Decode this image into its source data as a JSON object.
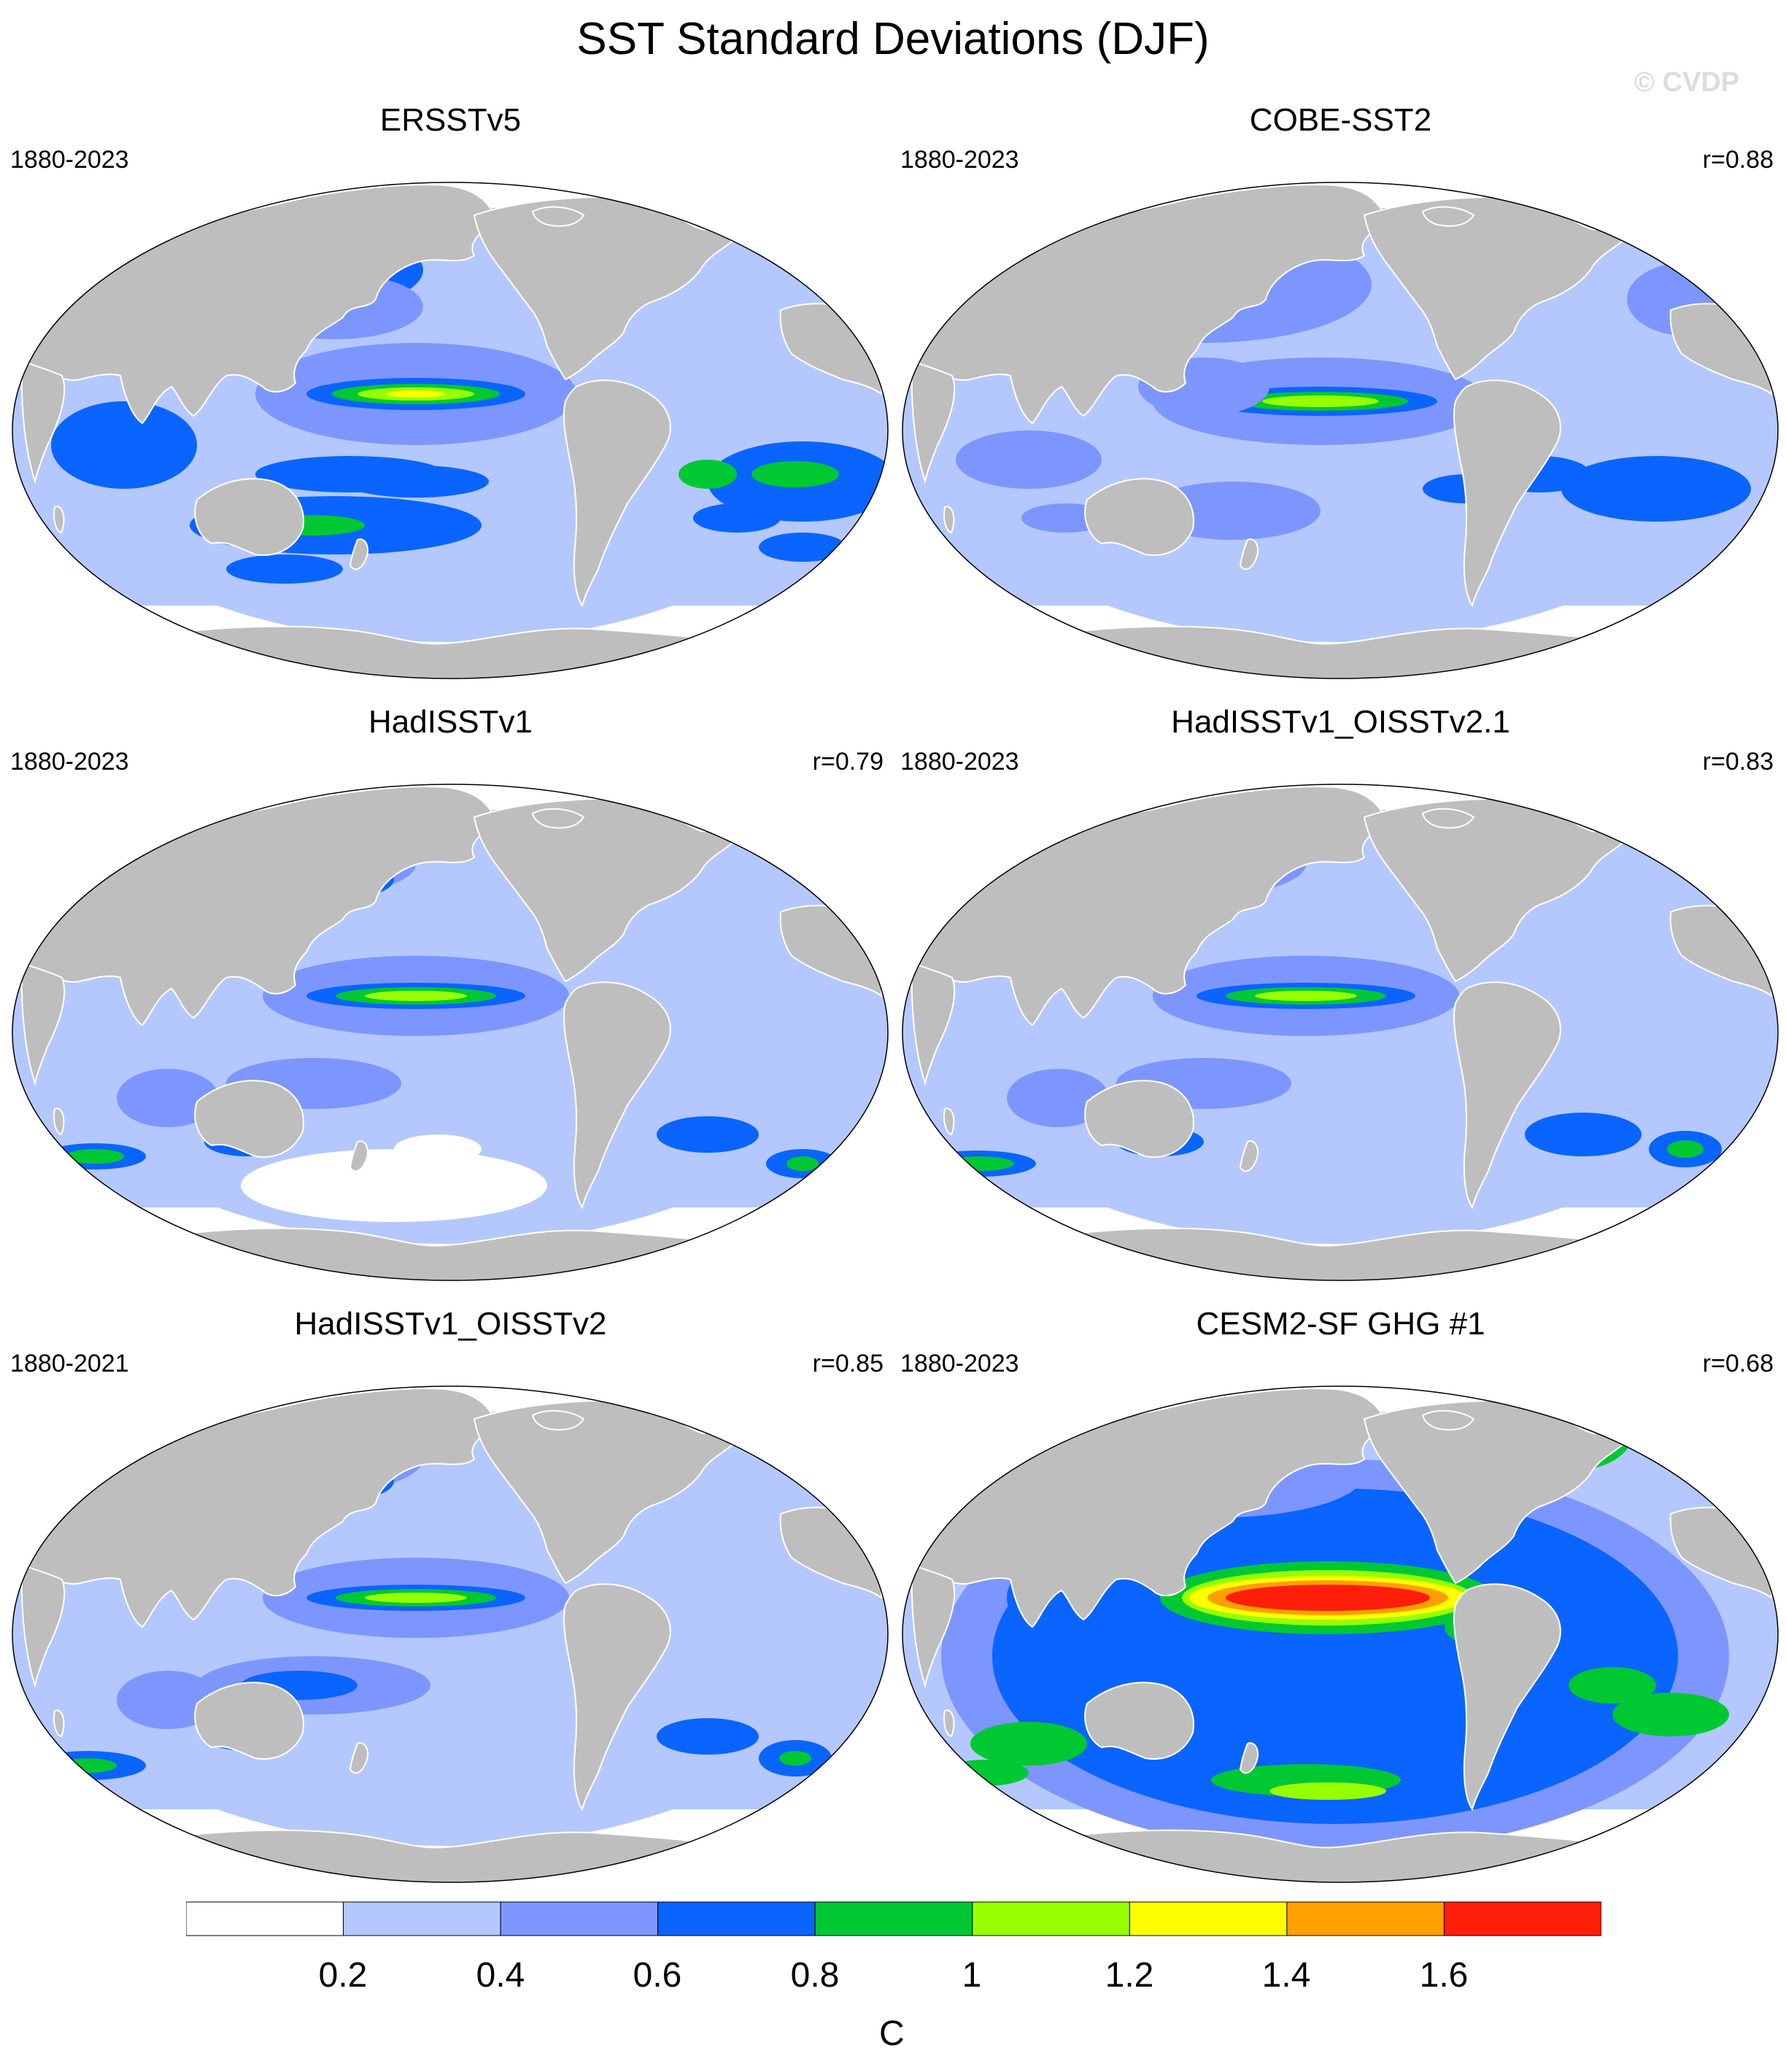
{
  "title": "SST Standard Deviations (DJF)",
  "watermark": "© CVDP",
  "colors": {
    "land": "#bebebe",
    "levels": [
      "#ffffff",
      "#b4c8ff",
      "#7d96ff",
      "#0a64ff",
      "#00c832",
      "#96ff00",
      "#ffff00",
      "#ffa000",
      "#ff1e0a"
    ]
  },
  "panels": [
    {
      "title": "ERSSTv5",
      "years": "1880-2023",
      "r": ""
    },
    {
      "title": "COBE-SST2",
      "years": "1880-2023",
      "r": "r=0.88"
    },
    {
      "title": "HadISSTv1",
      "years": "1880-2023",
      "r": "r=0.79"
    },
    {
      "title": "HadISSTv1_OISSTv2.1",
      "years": "1880-2023",
      "r": "r=0.83"
    },
    {
      "title": "HadISSTv1_OISSTv2",
      "years": "1880-2021",
      "r": "r=0.85"
    },
    {
      "title": "CESM2-SF GHG #1",
      "years": "1880-2023",
      "r": "r=0.68"
    }
  ],
  "colorbar": {
    "ticks": [
      "0.2",
      "0.4",
      "0.6",
      "0.8",
      "1",
      "1.2",
      "1.4",
      "1.6"
    ],
    "units": "C"
  }
}
